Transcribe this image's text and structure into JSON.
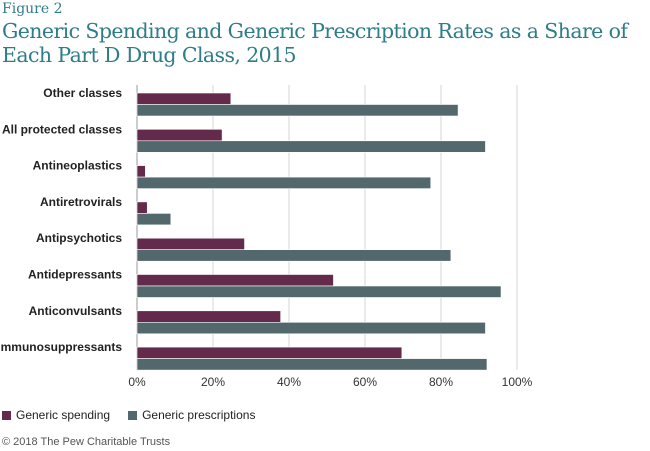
{
  "figure_label": "Figure 2",
  "chart_data": {
    "type": "bar",
    "orientation": "horizontal",
    "title": "Generic Spending and Generic Prescription Rates as a Share of Each Part D Drug Class, 2015",
    "categories": [
      "Other classes",
      "All protected classes",
      "Antineoplastics",
      "Antiretrovirals",
      "Antipsychotics",
      "Antidepressants",
      "Anticonvulsants",
      "Immunosuppressants"
    ],
    "series": [
      {
        "name": "Generic spending",
        "color": "#632a4b",
        "values": [
          24.7,
          22.4,
          2.2,
          2.7,
          28.3,
          51.7,
          37.8,
          69.7
        ]
      },
      {
        "name": "Generic prescriptions",
        "color": "#52686d",
        "values": [
          84.5,
          91.7,
          77.3,
          8.9,
          82.6,
          95.8,
          91.7,
          92.1
        ]
      }
    ],
    "xlim": [
      0,
      100
    ],
    "xticks": [
      "0%",
      "20%",
      "40%",
      "60%",
      "80%",
      "100%"
    ],
    "grid": true,
    "legend": "bottom-left"
  },
  "source": "© 2018 The Pew Charitable Trusts"
}
